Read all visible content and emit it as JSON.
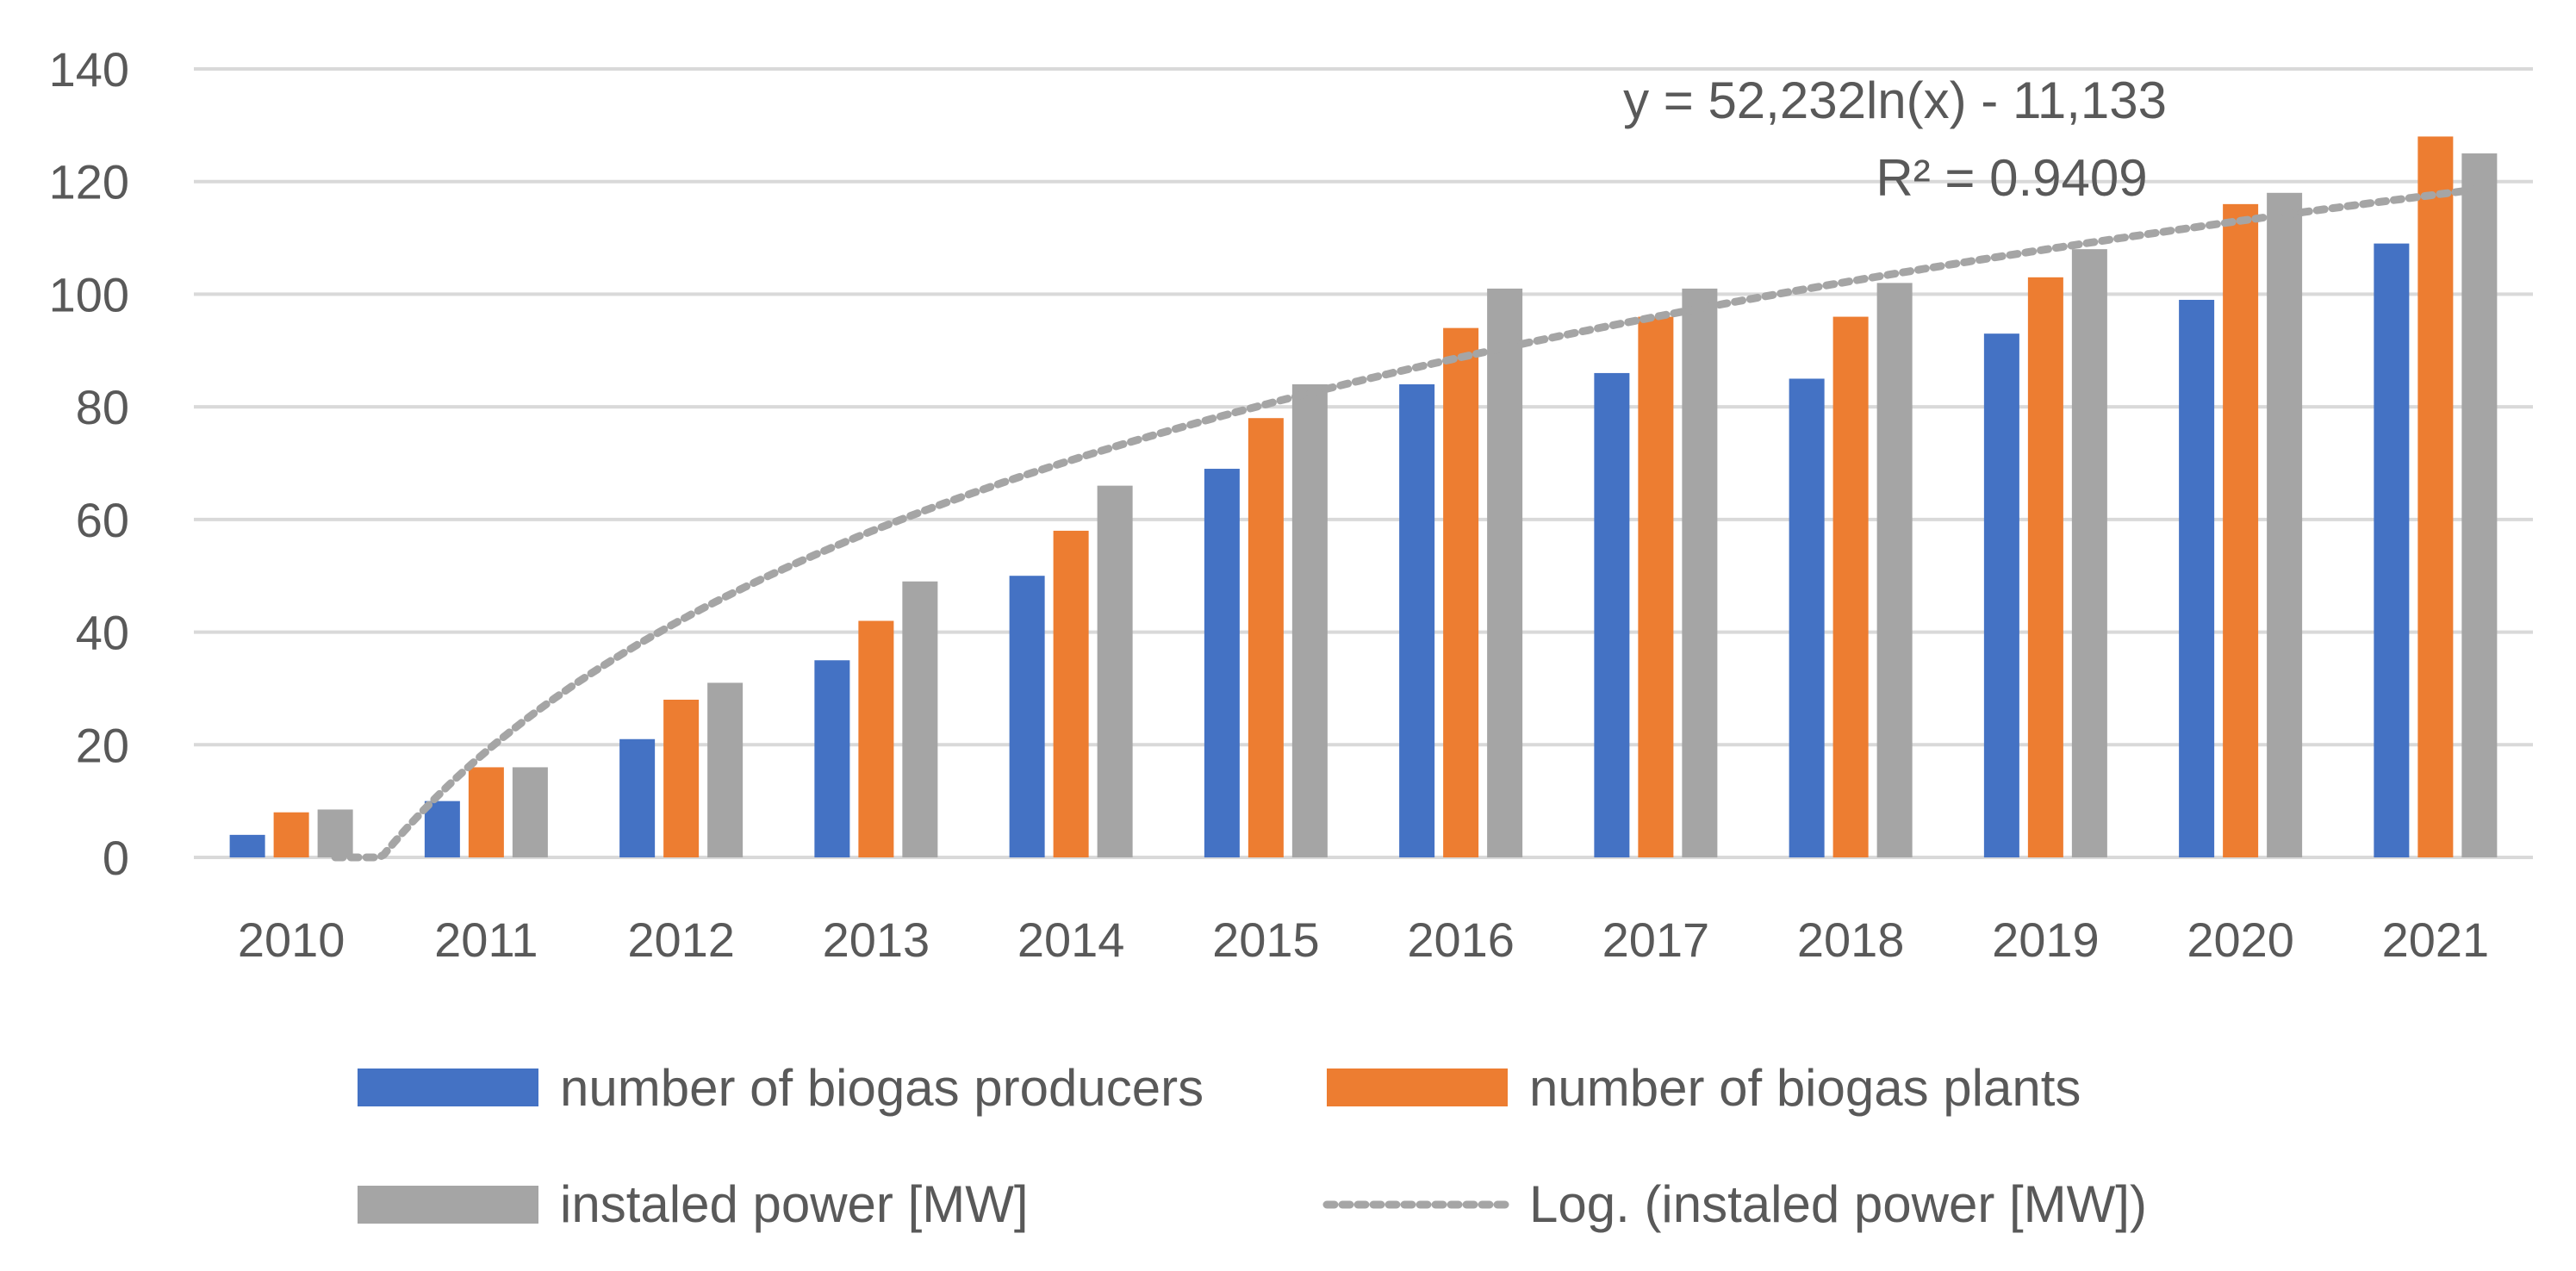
{
  "colors": {
    "producers": "#4472C4",
    "plants": "#ED7D31",
    "power": "#A5A5A5",
    "trend": "#A5A5A5",
    "grid": "#D9D9D9",
    "text": "#595959"
  },
  "chart_data": {
    "type": "bar",
    "title": "",
    "xlabel": "",
    "ylabel": "",
    "ylim": [
      0,
      140
    ],
    "yticks": [
      "0",
      "20",
      "40",
      "60",
      "80",
      "100",
      "120",
      "140"
    ],
    "categories": [
      "2010",
      "2011",
      "2012",
      "2013",
      "2014",
      "2015",
      "2016",
      "2017",
      "2018",
      "2019",
      "2020",
      "2021"
    ],
    "series": [
      {
        "name": "number of biogas producers",
        "values": [
          4,
          10,
          21,
          35,
          50,
          69,
          84,
          86,
          85,
          93,
          99,
          109
        ]
      },
      {
        "name": "number of  biogas plants",
        "values": [
          8,
          16,
          28,
          42,
          58,
          78,
          94,
          96,
          96,
          103,
          116,
          128
        ]
      },
      {
        "name": "instaled power [MW]",
        "values": [
          8.5,
          16,
          31,
          49,
          66,
          84,
          101,
          101,
          102,
          108,
          118,
          125
        ]
      }
    ],
    "trendline": {
      "name": "Log. (instaled power [MW])",
      "type": "logarithmic",
      "a": 52.232,
      "b": -11.133,
      "equation": "y = 52,232ln(x) - 11,133",
      "r_squared": "R² = 0.9409"
    },
    "legend_position": "bottom"
  }
}
